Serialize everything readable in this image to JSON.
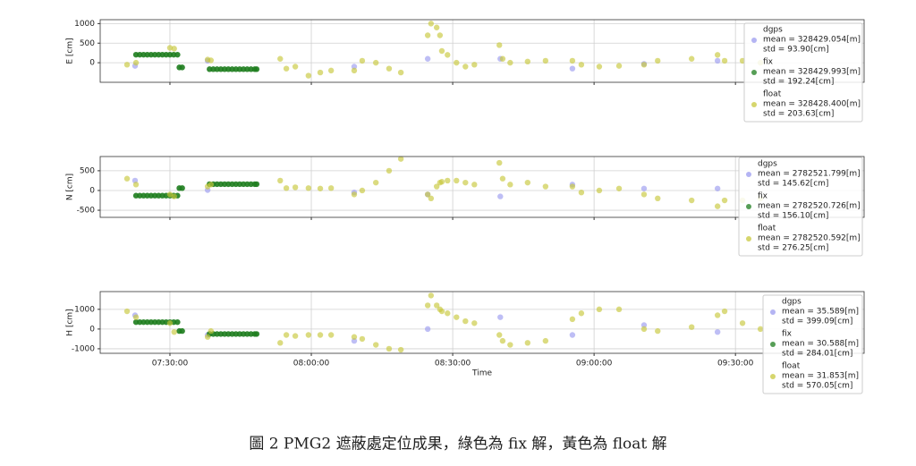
{
  "caption": "圖 2 PMG2 遮蔽處定位成果，綠色為 fix 解，黃色為 float 解",
  "chart_data": [
    {
      "type": "scatter",
      "ylabel": "E  [cm]",
      "xlim": [
        435.2,
        597.3
      ],
      "ylim": [
        -500,
        1100
      ],
      "xticks": [
        450,
        480,
        510,
        540,
        570
      ],
      "yticks": [
        0,
        500,
        1000
      ],
      "grid": true,
      "series": [
        {
          "name": "dgps",
          "color": "#9b9bef",
          "mean": "mean = 328429.054[m]",
          "std": "std = 93.90[cm]",
          "x": [
            442.6,
            458.0,
            489.1,
            504.7,
            520.1,
            535.4,
            550.6,
            566.2
          ],
          "values": [
            -80,
            50,
            -100,
            100,
            100,
            -150,
            -30,
            50
          ]
        },
        {
          "name": "fix",
          "color": "#1e7d1e",
          "mean": "mean = 328429.993[m]",
          "std": "std = 192.24[cm]",
          "x": [
            442.8,
            443.6,
            444.4,
            445.2,
            446.0,
            446.8,
            447.6,
            448.4,
            449.2,
            450.0,
            450.8,
            451.6,
            452.0,
            452.6,
            458.4,
            459.2,
            460.0,
            460.8,
            461.6,
            462.4,
            463.2,
            464.0,
            464.8,
            465.6,
            466.4,
            467.2,
            468.0,
            468.4
          ],
          "values": [
            205,
            205,
            205,
            205,
            205,
            205,
            205,
            205,
            205,
            205,
            205,
            205,
            -120,
            -120,
            -165,
            -165,
            -165,
            -165,
            -165,
            -165,
            -165,
            -165,
            -165,
            -165,
            -165,
            -165,
            -165,
            -165
          ]
        },
        {
          "name": "float",
          "color": "#c8c83c",
          "mean": "mean = 328428.400[m]",
          "std": "std = 203.63[cm]",
          "x": [
            440.9,
            442.8,
            450.0,
            450.9,
            458.0,
            458.7,
            473.4,
            474.7,
            476.6,
            479.4,
            481.9,
            484.2,
            489.1,
            490.8,
            493.7,
            496.5,
            499.0,
            504.7,
            505.4,
            506.6,
            507.3,
            507.7,
            508.9,
            510.8,
            512.7,
            514.6,
            519.9,
            520.6,
            522.2,
            525.9,
            529.7,
            535.4,
            537.3,
            541.1,
            545.3,
            550.6,
            553.5,
            560.7,
            566.2,
            567.7,
            571.5,
            575.3
          ],
          "values": [
            -50,
            0,
            380,
            360,
            80,
            60,
            100,
            -150,
            -100,
            -330,
            -250,
            -200,
            -200,
            50,
            0,
            -150,
            -250,
            700,
            1000,
            900,
            700,
            300,
            200,
            0,
            -100,
            -50,
            450,
            100,
            0,
            30,
            50,
            50,
            -50,
            -100,
            -80,
            -50,
            50,
            100,
            200,
            50,
            50,
            0
          ]
        }
      ]
    },
    {
      "type": "scatter",
      "ylabel": "N  [cm]",
      "xlim": [
        435.2,
        597.3
      ],
      "ylim": [
        -680,
        860
      ],
      "xticks": [
        450,
        480,
        510,
        540,
        570
      ],
      "yticks": [
        -500,
        0,
        500
      ],
      "grid": true,
      "series": [
        {
          "name": "dgps",
          "color": "#9b9bef",
          "mean": "mean = 2782521.799[m]",
          "std": "std = 145.62[cm]",
          "x": [
            442.6,
            458.0,
            489.1,
            504.7,
            520.1,
            535.4,
            550.6,
            566.2
          ],
          "values": [
            250,
            10,
            -50,
            -100,
            -150,
            150,
            50,
            50
          ]
        },
        {
          "name": "fix",
          "color": "#1e7d1e",
          "mean": "mean = 2782520.726[m]",
          "std": "std = 156.10[cm]",
          "x": [
            442.8,
            443.6,
            444.4,
            445.2,
            446.0,
            446.8,
            447.6,
            448.4,
            449.2,
            450.0,
            450.8,
            451.6,
            452.0,
            452.6,
            458.4,
            459.2,
            460.0,
            460.8,
            461.6,
            462.4,
            463.2,
            464.0,
            464.8,
            465.6,
            466.4,
            467.2,
            468.0,
            468.4
          ],
          "values": [
            -130,
            -130,
            -130,
            -130,
            -130,
            -130,
            -130,
            -130,
            -130,
            -130,
            -130,
            -130,
            60,
            60,
            160,
            160,
            160,
            160,
            160,
            160,
            160,
            160,
            160,
            160,
            160,
            160,
            160,
            160
          ]
        },
        {
          "name": "float",
          "color": "#c8c83c",
          "mean": "mean = 2782520.592[m]",
          "std": "std = 276.25[cm]",
          "x": [
            440.9,
            442.8,
            450.0,
            450.9,
            458.0,
            458.7,
            473.4,
            474.7,
            476.6,
            479.4,
            481.9,
            484.2,
            489.1,
            490.8,
            493.7,
            496.5,
            499.0,
            504.7,
            505.4,
            506.6,
            507.3,
            507.7,
            508.9,
            510.8,
            512.7,
            514.6,
            519.9,
            520.6,
            522.2,
            525.9,
            529.7,
            535.4,
            537.3,
            541.1,
            545.3,
            550.6,
            553.5,
            560.7,
            566.2,
            567.7,
            571.5,
            575.3
          ],
          "values": [
            300,
            150,
            -100,
            -150,
            100,
            150,
            250,
            60,
            80,
            60,
            50,
            60,
            -100,
            0,
            200,
            500,
            800,
            -100,
            -200,
            100,
            200,
            220,
            250,
            250,
            200,
            150,
            700,
            300,
            150,
            200,
            100,
            100,
            -50,
            0,
            50,
            -100,
            -200,
            -250,
            -400,
            -250,
            -250,
            -200
          ]
        }
      ]
    },
    {
      "type": "scatter",
      "ylabel": "H  [cm]",
      "xlabel": "Time",
      "xlim": [
        435.2,
        597.3
      ],
      "ylim": [
        -1230,
        1900
      ],
      "xticks": [
        {
          "value": 450,
          "label": "07:30:00"
        },
        {
          "value": 480,
          "label": "08:00:00"
        },
        {
          "value": 510,
          "label": "08:30:00"
        },
        {
          "value": 540,
          "label": "09:00:00"
        },
        {
          "value": 570,
          "label": "09:30:00"
        }
      ],
      "yticks": [
        -1000,
        0,
        1000
      ],
      "grid": true,
      "series": [
        {
          "name": "dgps",
          "color": "#9b9bef",
          "mean": "mean = 35.589[m]",
          "std": "std = 399.09[cm]",
          "x": [
            442.6,
            458.0,
            489.1,
            504.7,
            520.1,
            535.4,
            550.6,
            566.2
          ],
          "values": [
            700,
            -300,
            -600,
            0,
            600,
            -300,
            200,
            -150
          ]
        },
        {
          "name": "fix",
          "color": "#1e7d1e",
          "mean": "mean = 30.588[m]",
          "std": "std = 284.01[cm]",
          "x": [
            442.8,
            443.6,
            444.4,
            445.2,
            446.0,
            446.8,
            447.6,
            448.4,
            449.2,
            450.0,
            450.8,
            451.6,
            452.0,
            452.6,
            458.4,
            459.2,
            460.0,
            460.8,
            461.6,
            462.4,
            463.2,
            464.0,
            464.8,
            465.6,
            466.4,
            467.2,
            468.0,
            468.4
          ],
          "values": [
            350,
            350,
            350,
            350,
            350,
            350,
            350,
            350,
            350,
            350,
            350,
            350,
            -100,
            -100,
            -250,
            -250,
            -250,
            -250,
            -250,
            -250,
            -250,
            -250,
            -250,
            -250,
            -250,
            -250,
            -250,
            -250
          ]
        },
        {
          "name": "float",
          "color": "#c8c83c",
          "mean": "mean = 31.853[m]",
          "std": "std = 570.05[cm]",
          "x": [
            440.9,
            442.8,
            450.0,
            450.9,
            458.0,
            458.7,
            473.4,
            474.7,
            476.6,
            479.4,
            481.9,
            484.2,
            489.1,
            490.8,
            493.7,
            496.5,
            499.0,
            504.7,
            505.4,
            506.6,
            507.3,
            507.7,
            508.9,
            510.8,
            512.7,
            514.6,
            519.9,
            520.6,
            522.2,
            525.9,
            529.7,
            535.4,
            537.3,
            541.1,
            545.3,
            550.6,
            553.5,
            560.7,
            566.2,
            567.7,
            571.5,
            575.3
          ],
          "values": [
            900,
            600,
            300,
            -150,
            -400,
            -100,
            -700,
            -300,
            -350,
            -300,
            -300,
            -300,
            -400,
            -500,
            -800,
            -1000,
            -1050,
            1200,
            1700,
            1200,
            1000,
            900,
            800,
            600,
            400,
            300,
            -300,
            -600,
            -800,
            -700,
            -600,
            500,
            800,
            1000,
            1000,
            0,
            -100,
            100,
            700,
            900,
            300,
            0
          ]
        }
      ]
    }
  ]
}
